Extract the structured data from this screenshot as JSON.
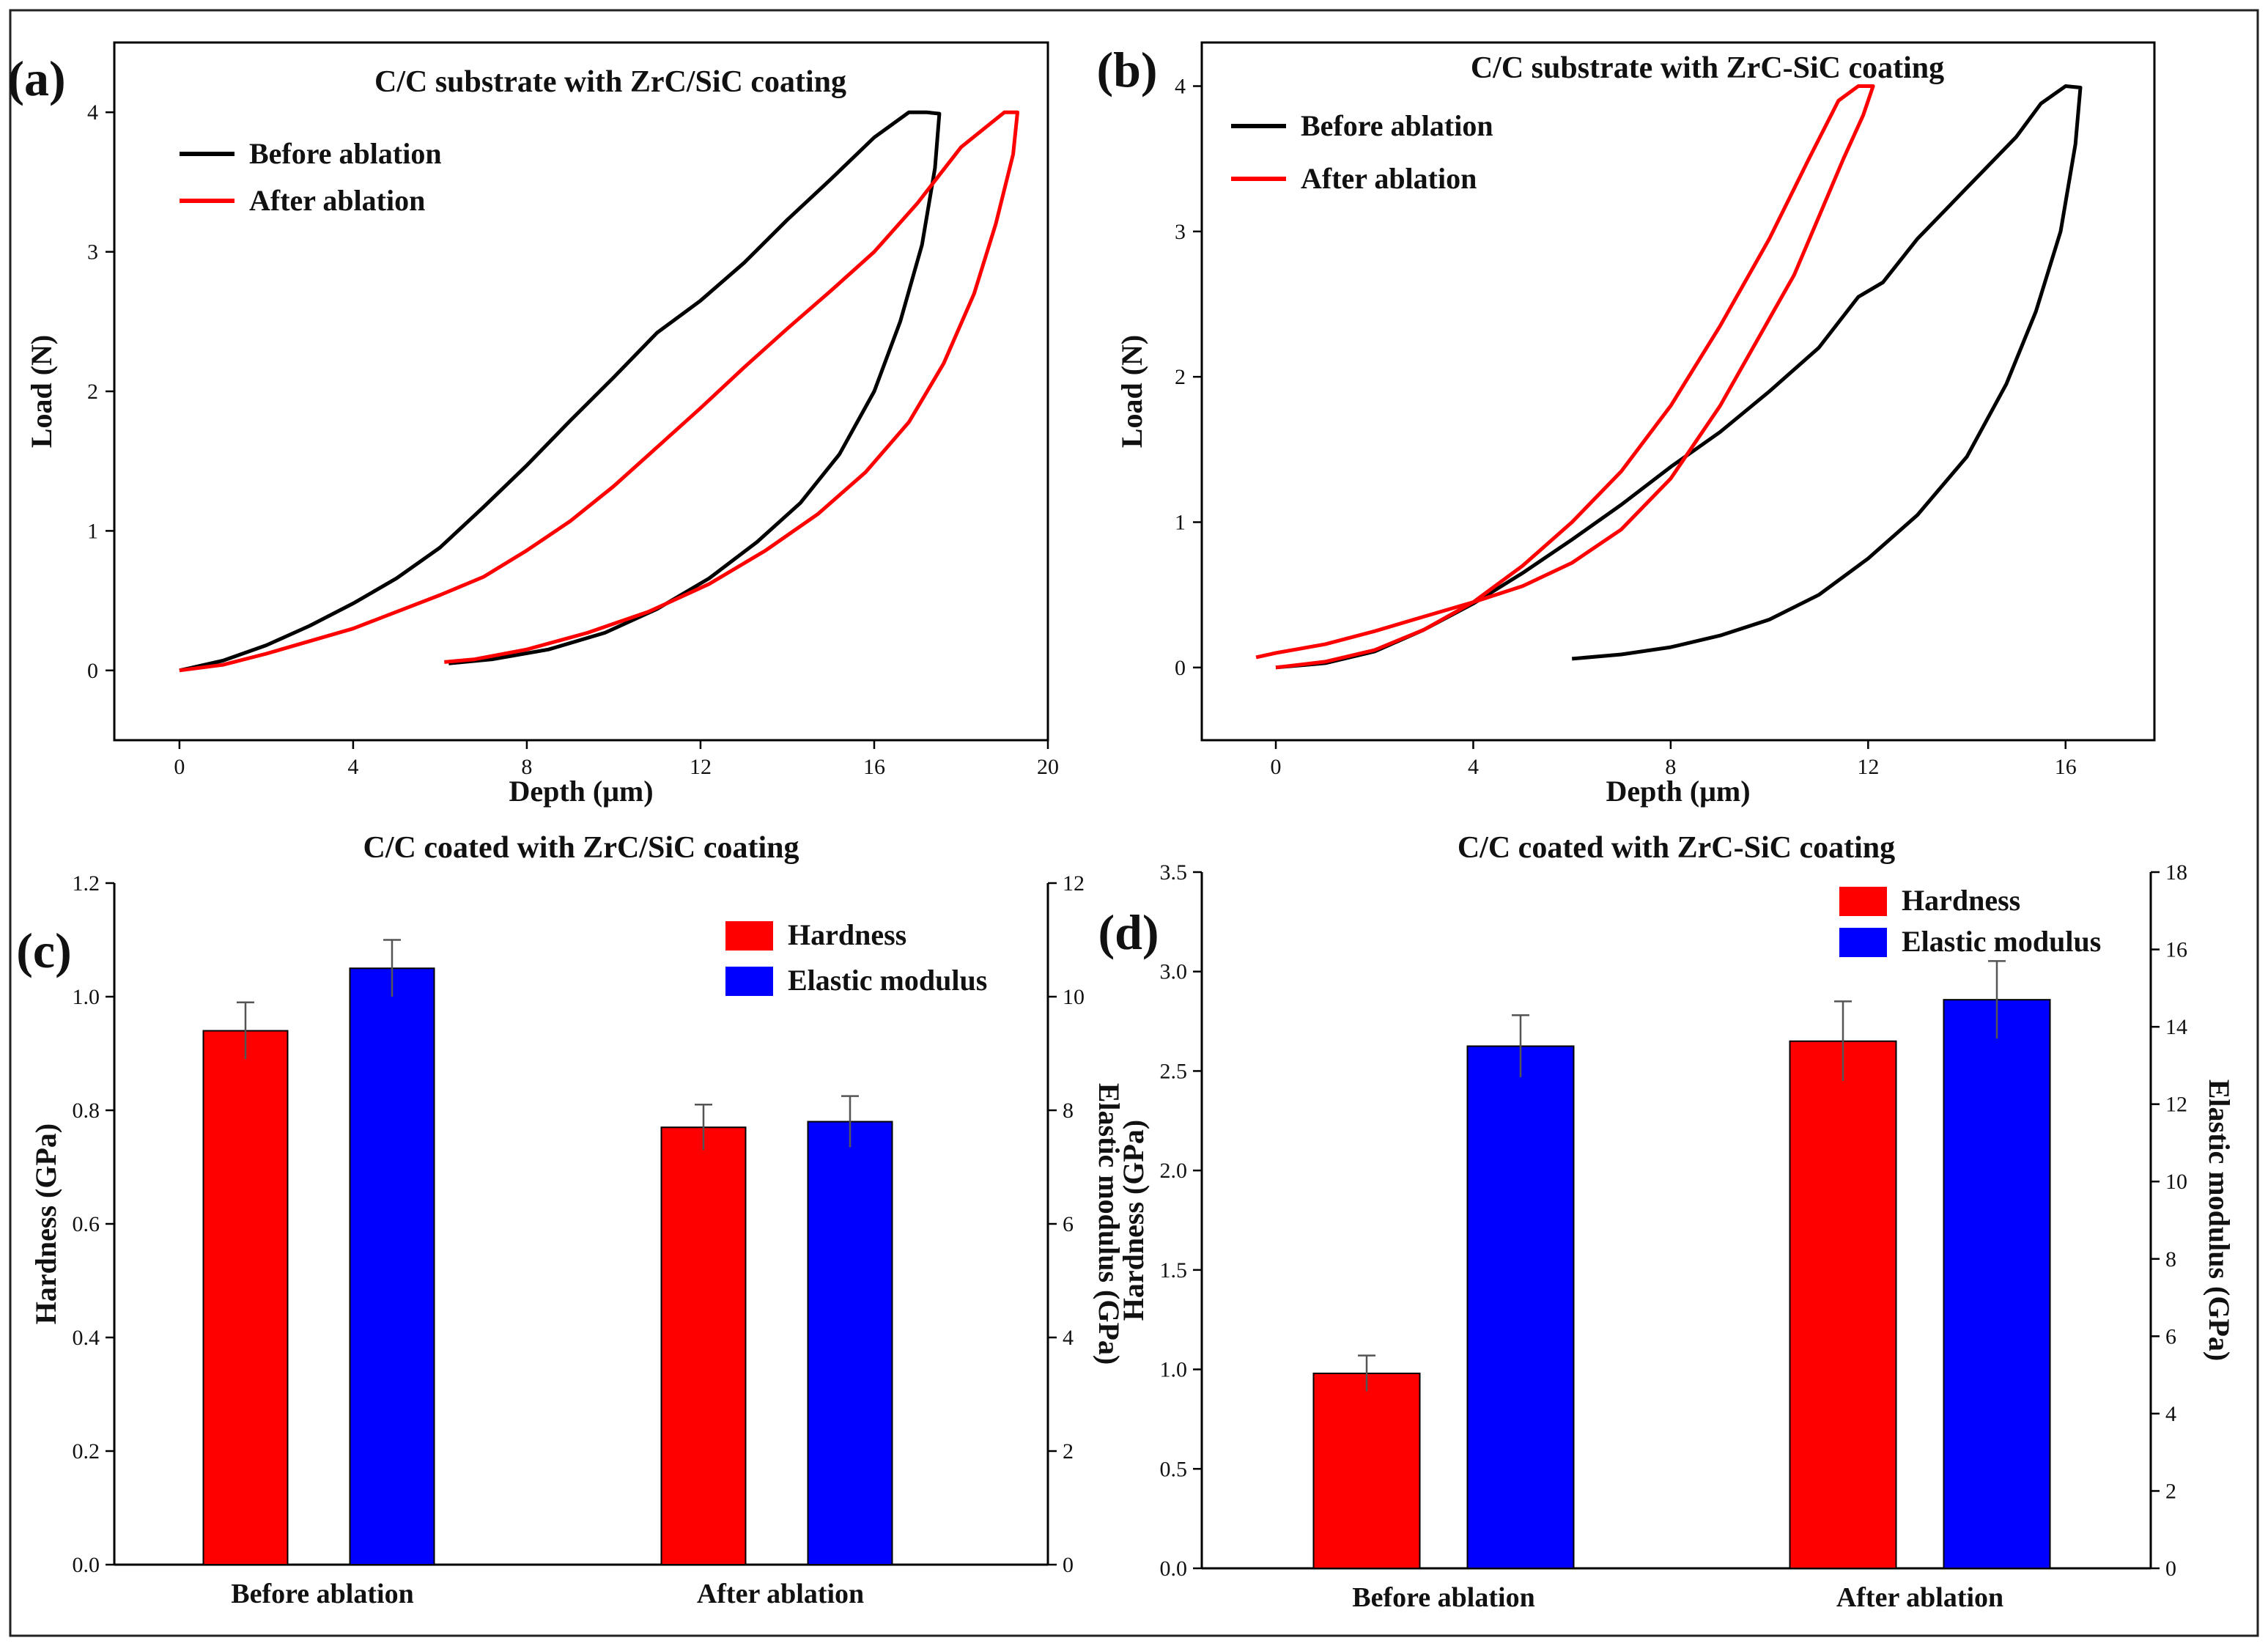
{
  "chart_data": [
    {
      "panel": "(a)",
      "type": "line",
      "title": "C/C substrate with ZrC/SiC coating",
      "xlabel": "Depth (μm)",
      "ylabel": "Load (N)",
      "xlim": [
        -1.5,
        20
      ],
      "ylim": [
        -0.5,
        4.5
      ],
      "xticks": [
        0,
        4,
        8,
        12,
        16,
        20
      ],
      "yticks": [
        0,
        1,
        2,
        3,
        4
      ],
      "legend_position": "top-left",
      "series": [
        {
          "name": "Before ablation",
          "color": "#000000",
          "x": [
            0,
            1,
            2,
            3,
            4,
            5,
            6,
            7,
            8,
            9,
            10,
            11,
            12,
            13,
            14,
            15,
            16,
            16.8,
            17.2,
            17.5,
            17.4,
            17.1,
            16.6,
            16,
            15.2,
            14.3,
            13.3,
            12.2,
            11,
            9.8,
            8.5,
            7.2,
            6.2
          ],
          "y": [
            0,
            0.07,
            0.18,
            0.32,
            0.48,
            0.66,
            0.88,
            1.17,
            1.47,
            1.79,
            2.1,
            2.42,
            2.65,
            2.92,
            3.23,
            3.52,
            3.82,
            4.0,
            4.0,
            3.99,
            3.6,
            3.05,
            2.5,
            2.0,
            1.55,
            1.2,
            0.92,
            0.66,
            0.44,
            0.27,
            0.15,
            0.08,
            0.05
          ]
        },
        {
          "name": "After ablation",
          "color": "#ff0000",
          "x": [
            0,
            1,
            2,
            3,
            4,
            5,
            6,
            7,
            8,
            9,
            10,
            11,
            12,
            13,
            14,
            15,
            16,
            17,
            18,
            18.6,
            19,
            19.3,
            19.2,
            18.8,
            18.3,
            17.6,
            16.8,
            15.8,
            14.7,
            13.5,
            12.2,
            10.8,
            9.4,
            8,
            6.8,
            6.1
          ],
          "y": [
            0,
            0.04,
            0.12,
            0.21,
            0.3,
            0.42,
            0.54,
            0.67,
            0.86,
            1.07,
            1.32,
            1.6,
            1.88,
            2.17,
            2.45,
            2.72,
            3.0,
            3.35,
            3.75,
            3.9,
            4.0,
            4.0,
            3.7,
            3.2,
            2.7,
            2.2,
            1.78,
            1.42,
            1.12,
            0.86,
            0.62,
            0.42,
            0.27,
            0.15,
            0.08,
            0.06
          ]
        }
      ]
    },
    {
      "panel": "(b)",
      "type": "line",
      "title": "C/C substrate with ZrC-SiC coating",
      "xlabel": "Depth (μm)",
      "ylabel": "Load (N)",
      "xlim": [
        -1.5,
        17.8
      ],
      "ylim": [
        -0.5,
        4.3
      ],
      "xticks": [
        0,
        4,
        8,
        12,
        16
      ],
      "yticks": [
        0,
        1,
        2,
        3,
        4
      ],
      "legend_position": "top-left",
      "series": [
        {
          "name": "Before ablation",
          "color": "#000000",
          "x": [
            0,
            1,
            2,
            3,
            4,
            5,
            6,
            7,
            8,
            9,
            10,
            11,
            11.8,
            12.3,
            13,
            14,
            15,
            15.5,
            16,
            16.3,
            16.2,
            15.9,
            15.4,
            14.8,
            14,
            13,
            12,
            11,
            10,
            9,
            8,
            7,
            6
          ],
          "y": [
            0,
            0.03,
            0.11,
            0.26,
            0.44,
            0.65,
            0.88,
            1.12,
            1.38,
            1.62,
            1.9,
            2.2,
            2.55,
            2.65,
            2.95,
            3.3,
            3.65,
            3.88,
            4.0,
            3.99,
            3.6,
            3.0,
            2.45,
            1.95,
            1.45,
            1.05,
            0.75,
            0.5,
            0.33,
            0.22,
            0.14,
            0.09,
            0.06
          ]
        },
        {
          "name": "After ablation",
          "color": "#ff0000",
          "x": [
            0,
            1,
            2,
            3,
            4,
            5,
            6,
            7,
            8,
            9,
            10,
            10.8,
            11.4,
            11.8,
            12.1,
            11.9,
            11.5,
            11,
            10.5,
            10,
            9,
            8,
            7,
            6,
            5,
            4,
            3,
            2,
            1,
            0,
            -0.4
          ],
          "y": [
            0,
            0.04,
            0.12,
            0.26,
            0.45,
            0.7,
            1.0,
            1.35,
            1.8,
            2.35,
            2.95,
            3.5,
            3.9,
            4.0,
            4.0,
            3.8,
            3.5,
            3.1,
            2.7,
            2.4,
            1.8,
            1.3,
            0.95,
            0.72,
            0.56,
            0.45,
            0.35,
            0.25,
            0.16,
            0.1,
            0.07
          ]
        }
      ]
    },
    {
      "panel": "(c)",
      "type": "bar",
      "title": "C/C coated with ZrC/SiC coating",
      "categories": [
        "Before ablation",
        "After ablation"
      ],
      "ylabel": "Hardness (GPa)",
      "y2label": "Elastic modulus (GPa)",
      "ylim": [
        0,
        1.2
      ],
      "y2lim": [
        0,
        12
      ],
      "yticks": [
        "0.0",
        "0.2",
        "0.4",
        "0.6",
        "0.8",
        "1.0",
        "1.2"
      ],
      "y2ticks": [
        "0",
        "2",
        "4",
        "6",
        "8",
        "10",
        "12"
      ],
      "legend_position": "top-right",
      "series": [
        {
          "name": "Hardness",
          "axis": "left",
          "color": "#ff0000",
          "values": [
            0.94,
            0.77
          ],
          "errors": [
            0.05,
            0.04
          ]
        },
        {
          "name": "Elastic modulus",
          "axis": "right",
          "color": "#0000ff",
          "values": [
            10.5,
            7.8
          ],
          "errors": [
            0.5,
            0.45
          ]
        }
      ]
    },
    {
      "panel": "(d)",
      "type": "bar",
      "title": "C/C coated with ZrC-SiC coating",
      "categories": [
        "Before ablation",
        "After ablation"
      ],
      "ylabel": "Hardness (GPa)",
      "y2label": "Elastic modulus (GPa)",
      "ylim": [
        0,
        3.5
      ],
      "y2lim": [
        0,
        18
      ],
      "yticks": [
        "0.0",
        "0.5",
        "1.0",
        "1.5",
        "2.0",
        "2.5",
        "3.0",
        "3.5"
      ],
      "y2ticks": [
        "0",
        "2",
        "4",
        "6",
        "8",
        "10",
        "12",
        "14",
        "16",
        "18"
      ],
      "legend_position": "top-right",
      "series": [
        {
          "name": "Hardness",
          "axis": "left",
          "color": "#ff0000",
          "values": [
            0.98,
            2.65
          ],
          "errors": [
            0.09,
            0.2
          ]
        },
        {
          "name": "Elastic modulus",
          "axis": "right",
          "color": "#0000ff",
          "values": [
            13.5,
            14.7
          ],
          "errors": [
            0.8,
            1.0
          ]
        }
      ]
    }
  ]
}
